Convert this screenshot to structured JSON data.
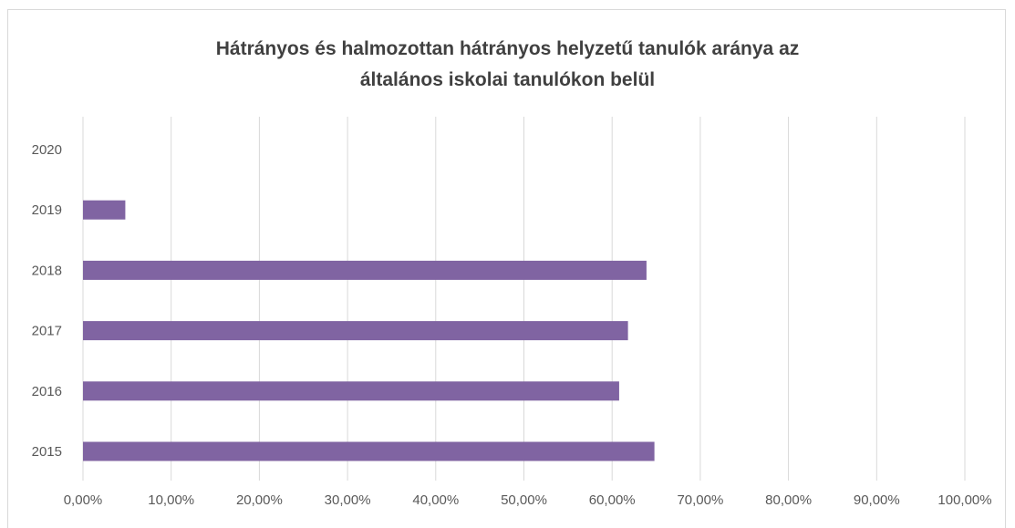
{
  "chart_data": {
    "type": "bar",
    "orientation": "horizontal",
    "title_lines": [
      "Hátrányos és halmozottan hátrányos helyzetű  tanulók aránya az",
      "általános iskolai tanulókon belül"
    ],
    "categories": [
      "2015",
      "2016",
      "2017",
      "2018",
      "2019",
      "2020"
    ],
    "values": [
      0.648,
      0.608,
      0.618,
      0.639,
      0.048,
      null
    ],
    "xlim": [
      0,
      1
    ],
    "x_ticks": [
      "0,00%",
      "10,00%",
      "20,00%",
      "30,00%",
      "40,00%",
      "50,00%",
      "60,00%",
      "70,00%",
      "80,00%",
      "90,00%",
      "100,00%"
    ],
    "grid": true,
    "legend": "none",
    "colors": {
      "bar": "#8064a2",
      "grid": "#d9d9d9",
      "text": "#595959",
      "title": "#404040"
    }
  }
}
